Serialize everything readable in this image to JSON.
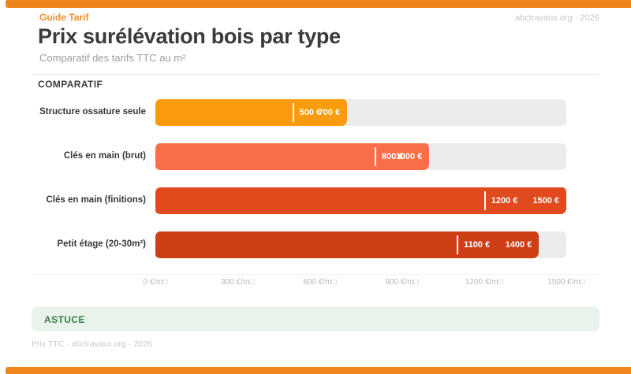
{
  "header": {
    "kicker": "Guide Tarif",
    "meta": "abctravaux.org · 2026",
    "title": "Prix surélévation bois par type",
    "subtitle": "Comparatif des tarifs TTC au m²"
  },
  "section_label": "COMPARATIF",
  "tip": {
    "label": "ASTUCE"
  },
  "footer": {
    "text": "Prix TTC · abctravaux.org · 2026"
  },
  "colors": {
    "accent_bar": "#ef861d",
    "kicker": "#f28c2b",
    "track": "#ececec",
    "tip_bg": "#e9f3eb",
    "tip_text": "#387d42",
    "axis_text": "#b5b8bb"
  },
  "chart_data": {
    "type": "bar",
    "orientation": "horizontal",
    "title": "Prix surélévation bois par type",
    "subtitle": "Comparatif des tarifs TTC au m²",
    "unit": "€/m²",
    "xlim": [
      0,
      1500
    ],
    "grid": false,
    "legend_position": "none",
    "x_tick_values": [
      0,
      300,
      600,
      900,
      1200,
      1500
    ],
    "x_tick_labels": [
      "0 €/m□",
      "300 €/m□",
      "600 €/m□",
      "900 €/m□",
      "1200 €/m□",
      "1500 €/m□"
    ],
    "categories": [
      "Structure ossature seule",
      "Clés en main (brut)",
      "Clés en main (finitions)",
      "Petit étage (20-30m²)"
    ],
    "series": [
      {
        "name": "prix_min",
        "values": [
          500,
          800,
          1200,
          1100
        ]
      },
      {
        "name": "prix_max",
        "values": [
          700,
          1000,
          1500,
          1400
        ]
      }
    ],
    "rows": [
      {
        "category": "Structure ossature seule",
        "min": 500,
        "max": 700,
        "min_label": "500 €",
        "max_label": "700 €",
        "color": "#f89b0c"
      },
      {
        "category": "Clés en main (brut)",
        "min": 800,
        "max": 1000,
        "min_label": "800 €",
        "max_label": "1000 €",
        "color": "#f96e48"
      },
      {
        "category": "Clés en main (finitions)",
        "min": 1200,
        "max": 1500,
        "min_label": "1200 €",
        "max_label": "1500 €",
        "color": "#e04a1d"
      },
      {
        "category": "Petit étage (20-30m²)",
        "min": 1100,
        "max": 1400,
        "min_label": "1100 €",
        "max_label": "1400 €",
        "color": "#ce3f16"
      }
    ]
  }
}
